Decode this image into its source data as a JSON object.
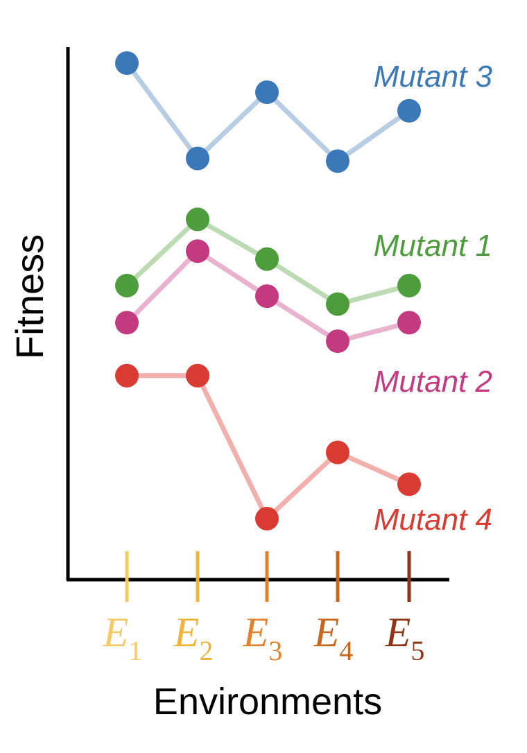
{
  "chart_data": {
    "type": "line",
    "title": "",
    "xlabel": "Environments",
    "ylabel": "Fitness",
    "y_ticks_shown": false,
    "grid": false,
    "x": [
      {
        "main": "E",
        "sub": "1",
        "color": "#f6c967"
      },
      {
        "main": "E",
        "sub": "2",
        "color": "#f0b43a"
      },
      {
        "main": "E",
        "sub": "3",
        "color": "#e0832c"
      },
      {
        "main": "E",
        "sub": "4",
        "color": "#c9651f"
      },
      {
        "main": "E",
        "sub": "5",
        "color": "#8f3516"
      }
    ],
    "ylim": [
      0,
      100
    ],
    "series": [
      {
        "name": "Mutant 3",
        "values": [
          97,
          79,
          91.5,
          78.5,
          88
        ],
        "color": "#3a78b8",
        "line_color": "#b7cde3"
      },
      {
        "name": "Mutant 1",
        "values": [
          55,
          67.5,
          60,
          51.5,
          55
        ],
        "color": "#4e9d3c",
        "line_color": "#bddbb3"
      },
      {
        "name": "Mutant 2",
        "values": [
          48,
          61.5,
          53,
          44.5,
          48
        ],
        "color": "#c43a80",
        "line_color": "#e9b3cf"
      },
      {
        "name": "Mutant 4",
        "values": [
          38,
          38,
          11,
          23.5,
          17.5
        ],
        "color": "#d93a31",
        "line_color": "#f2b0ad"
      }
    ]
  }
}
